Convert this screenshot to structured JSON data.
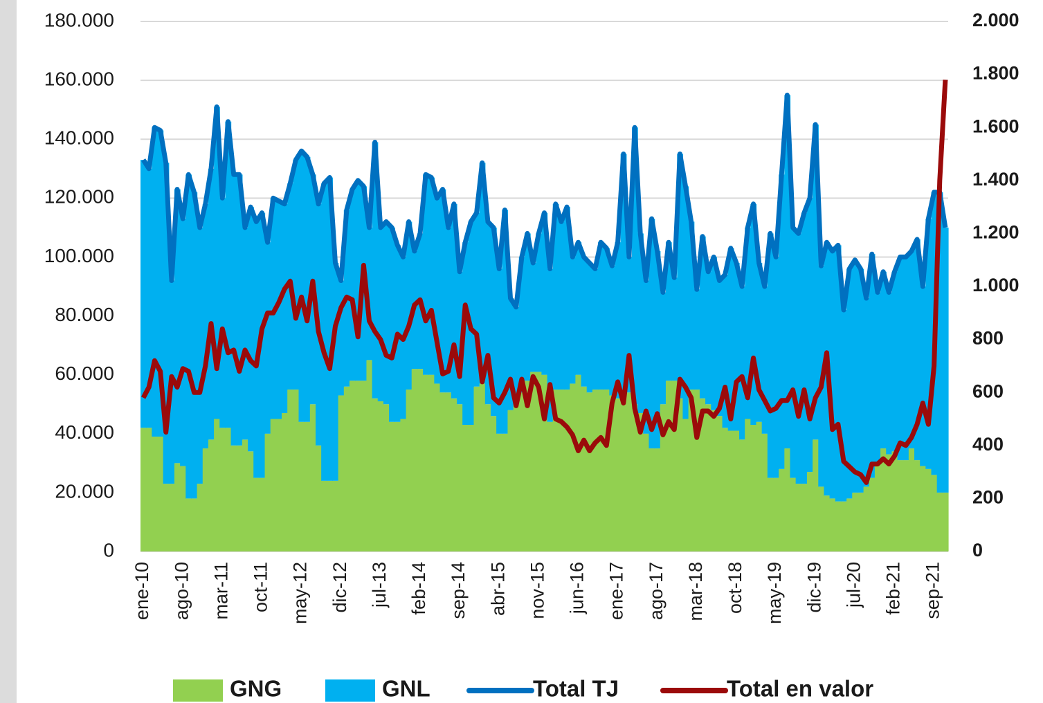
{
  "chart_data": {
    "type": "stacked-area-line",
    "categories": [
      "ene-10",
      null,
      null,
      null,
      null,
      null,
      null,
      "ago-10",
      null,
      null,
      null,
      null,
      null,
      null,
      "mar-11",
      null,
      null,
      null,
      null,
      null,
      null,
      "oct-11",
      null,
      null,
      null,
      null,
      null,
      null,
      "may-12",
      null,
      null,
      null,
      null,
      null,
      null,
      "dic-12",
      null,
      null,
      null,
      null,
      null,
      null,
      "jul-13",
      null,
      null,
      null,
      null,
      null,
      null,
      "feb-14",
      null,
      null,
      null,
      null,
      null,
      null,
      "sep-14",
      null,
      null,
      null,
      null,
      null,
      null,
      "abr-15",
      null,
      null,
      null,
      null,
      null,
      null,
      "nov-15",
      null,
      null,
      null,
      null,
      null,
      null,
      "jun-16",
      null,
      null,
      null,
      null,
      null,
      null,
      "ene-17",
      null,
      null,
      null,
      null,
      null,
      null,
      "ago-17",
      null,
      null,
      null,
      null,
      null,
      null,
      "mar-18",
      null,
      null,
      null,
      null,
      null,
      null,
      "oct-18",
      null,
      null,
      null,
      null,
      null,
      null,
      "may-19",
      null,
      null,
      null,
      null,
      null,
      null,
      "dic-19",
      null,
      null,
      null,
      null,
      null,
      null,
      "jul-20",
      null,
      null,
      null,
      null,
      null,
      null,
      "feb-21",
      null,
      null,
      null,
      null,
      null,
      null,
      "sep-21",
      null,
      null
    ],
    "series": [
      {
        "name": "GNG",
        "kind": "area",
        "color": "#92d050",
        "values": [
          42000,
          42000,
          39000,
          39000,
          23000,
          23000,
          30000,
          29000,
          18000,
          18000,
          23000,
          35000,
          38000,
          45000,
          42000,
          42000,
          36000,
          36000,
          38000,
          34000,
          25000,
          25000,
          40000,
          45000,
          45000,
          47000,
          55000,
          55000,
          44000,
          44000,
          50000,
          36000,
          24000,
          24000,
          24000,
          53000,
          56000,
          58000,
          58000,
          58000,
          65000,
          52000,
          51000,
          50000,
          44000,
          44000,
          45000,
          55000,
          62000,
          62000,
          60000,
          60000,
          57000,
          54000,
          54000,
          52000,
          50000,
          43000,
          43000,
          56000,
          57000,
          50000,
          46000,
          40000,
          40000,
          48000,
          52000,
          54000,
          58000,
          61000,
          61000,
          60000,
          44000,
          55000,
          55000,
          55000,
          57000,
          60000,
          56000,
          54000,
          55000,
          55000,
          55000,
          53000,
          52000,
          52000,
          54000,
          50000,
          47000,
          40000,
          35000,
          35000,
          50000,
          58000,
          58000,
          52000,
          45000,
          55000,
          55000,
          52000,
          50000,
          48000,
          46000,
          42000,
          41000,
          41000,
          38000,
          45000,
          43000,
          44000,
          40000,
          25000,
          25000,
          28000,
          35000,
          25000,
          23000,
          23000,
          27000,
          38000,
          22000,
          19000,
          18000,
          17000,
          17000,
          18000,
          20000,
          20000,
          22000,
          25000,
          30000,
          35000,
          33000,
          34000,
          31000,
          31000,
          35000,
          31000,
          29000,
          28000,
          26000,
          20000,
          20000
        ]
      },
      {
        "name": "GNL",
        "kind": "area",
        "color": "#00b0f0",
        "values": [
          91000,
          88000,
          105000,
          104000,
          109000,
          69000,
          93000,
          84000,
          110000,
          104000,
          87000,
          83000,
          92000,
          106000,
          78000,
          104000,
          92000,
          92000,
          72000,
          83000,
          87000,
          90000,
          65000,
          75000,
          74000,
          71000,
          70000,
          78000,
          92000,
          90000,
          78000,
          82000,
          101000,
          103000,
          74000,
          39000,
          60000,
          65000,
          68000,
          66000,
          45000,
          87000,
          59000,
          62000,
          66000,
          60000,
          55000,
          57000,
          40000,
          46000,
          68000,
          67000,
          63000,
          69000,
          56000,
          66000,
          45000,
          62000,
          69000,
          59000,
          75000,
          62000,
          64000,
          56000,
          76000,
          38000,
          31000,
          46000,
          50000,
          37000,
          47000,
          55000,
          52000,
          63000,
          57000,
          62000,
          43000,
          45000,
          44000,
          44000,
          41000,
          50000,
          48000,
          44000,
          53000,
          83000,
          46000,
          94000,
          61000,
          52000,
          78000,
          67000,
          38000,
          47000,
          35000,
          83000,
          79000,
          57000,
          34000,
          55000,
          45000,
          52000,
          46000,
          52000,
          62000,
          57000,
          52000,
          65000,
          75000,
          54000,
          50000,
          83000,
          75000,
          100000,
          120000,
          85000,
          85000,
          92000,
          93000,
          107000,
          75000,
          86000,
          84000,
          87000,
          65000,
          78000,
          79000,
          76000,
          64000,
          76000,
          58000,
          60000,
          55000,
          61000,
          69000,
          69000,
          67000,
          75000,
          61000,
          85000,
          96000,
          102000,
          90000
        ]
      },
      {
        "name": "Total TJ",
        "kind": "line",
        "color": "#0070c0",
        "values": [
          133000,
          130000,
          144000,
          143000,
          132000,
          92000,
          123000,
          113000,
          128000,
          122000,
          110000,
          118000,
          130000,
          151000,
          120000,
          146000,
          128000,
          128000,
          110000,
          117000,
          112000,
          115000,
          105000,
          120000,
          119000,
          118000,
          125000,
          133000,
          136000,
          134000,
          128000,
          118000,
          125000,
          127000,
          98000,
          92000,
          116000,
          123000,
          126000,
          124000,
          110000,
          139000,
          110000,
          112000,
          110000,
          104000,
          100000,
          112000,
          102000,
          108000,
          128000,
          127000,
          120000,
          123000,
          110000,
          118000,
          95000,
          105000,
          112000,
          115000,
          132000,
          112000,
          110000,
          96000,
          116000,
          86000,
          83000,
          100000,
          108000,
          98000,
          108000,
          115000,
          96000,
          118000,
          112000,
          117000,
          100000,
          105000,
          100000,
          98000,
          96000,
          105000,
          103000,
          97000,
          105000,
          135000,
          100000,
          144000,
          108000,
          92000,
          113000,
          102000,
          88000,
          105000,
          93000,
          135000,
          124000,
          112000,
          89000,
          107000,
          95000,
          100000,
          92000,
          94000,
          103000,
          98000,
          90000,
          110000,
          118000,
          98000,
          90000,
          108000,
          100000,
          128000,
          155000,
          110000,
          108000,
          115000,
          120000,
          145000,
          97000,
          105000,
          102000,
          104000,
          82000,
          96000,
          99000,
          96000,
          86000,
          101000,
          88000,
          95000,
          88000,
          95000,
          100000,
          100000,
          102000,
          106000,
          90000,
          113000,
          122000,
          122000,
          110000
        ]
      },
      {
        "name": "Total en valor",
        "kind": "line",
        "axis": "y2",
        "color": "#9b0a0a",
        "values": [
          580,
          620,
          720,
          680,
          450,
          660,
          620,
          690,
          680,
          600,
          600,
          700,
          860,
          690,
          840,
          750,
          760,
          680,
          760,
          720,
          700,
          840,
          900,
          900,
          940,
          990,
          1020,
          880,
          960,
          870,
          1020,
          830,
          750,
          690,
          850,
          920,
          960,
          950,
          810,
          1080,
          870,
          830,
          800,
          740,
          730,
          820,
          800,
          850,
          930,
          950,
          870,
          910,
          790,
          670,
          680,
          780,
          660,
          930,
          840,
          820,
          640,
          740,
          580,
          560,
          600,
          650,
          550,
          650,
          550,
          660,
          620,
          500,
          630,
          500,
          490,
          470,
          440,
          380,
          420,
          380,
          410,
          430,
          400,
          560,
          640,
          560,
          740,
          540,
          450,
          530,
          460,
          520,
          440,
          490,
          460,
          650,
          620,
          580,
          430,
          530,
          530,
          510,
          540,
          620,
          500,
          640,
          660,
          580,
          730,
          610,
          570,
          530,
          540,
          570,
          570,
          610,
          510,
          610,
          500,
          580,
          620,
          750,
          460,
          480,
          340,
          320,
          300,
          290,
          260,
          330,
          330,
          350,
          330,
          360,
          410,
          400,
          430,
          480,
          560,
          480,
          700,
          1400,
          1780
        ]
      }
    ],
    "ylim": [
      0,
      180000
    ],
    "yticks": [
      0,
      {
        "value": 20000,
        "label": "20.000"
      },
      {
        "value": 40000,
        "label": "40.000"
      },
      {
        "value": 60000,
        "label": "60.000"
      },
      {
        "value": 80000,
        "label": "80.000"
      },
      {
        "value": 100000,
        "label": "100.000"
      },
      {
        "value": 120000,
        "label": "120.000"
      },
      {
        "value": 140000,
        "label": "140.000"
      },
      {
        "value": 160000,
        "label": "160.000"
      },
      {
        "value": 180000,
        "label": "180.000"
      }
    ],
    "y2lim": [
      0,
      2000
    ],
    "y2ticks": [
      0,
      200,
      400,
      600,
      800,
      {
        "value": 1000,
        "label": "1.000"
      },
      {
        "value": 1200,
        "label": "1.200"
      },
      {
        "value": 1400,
        "label": "1.400"
      },
      {
        "value": 1600,
        "label": "1.600"
      },
      {
        "value": 1800,
        "label": "1.800"
      },
      {
        "value": 2000,
        "label": "2.000"
      }
    ],
    "grid": true,
    "legend": "bottom"
  }
}
